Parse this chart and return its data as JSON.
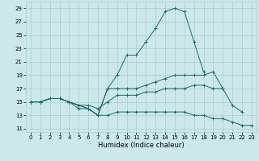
{
  "xlabel": "Humidex (Indice chaleur)",
  "bg_color": "#cce8ea",
  "grid_color": "#aacccc",
  "line_color": "#1a6b6b",
  "xlim": [
    -0.5,
    23.5
  ],
  "ylim": [
    10.5,
    30
  ],
  "xticks": [
    0,
    1,
    2,
    3,
    4,
    5,
    6,
    7,
    8,
    9,
    10,
    11,
    12,
    13,
    14,
    15,
    16,
    17,
    18,
    19,
    20,
    21,
    22,
    23
  ],
  "yticks": [
    11,
    13,
    15,
    17,
    19,
    21,
    23,
    25,
    27,
    29
  ],
  "lines": [
    {
      "x": [
        0,
        1,
        2,
        3,
        4,
        5,
        6,
        7,
        8,
        9,
        10,
        11,
        12,
        13,
        14,
        15,
        16,
        17,
        18
      ],
      "y": [
        15,
        15,
        15.5,
        15.5,
        15,
        14,
        14,
        13,
        17,
        19,
        22,
        22,
        24,
        26,
        28.5,
        29,
        28.5,
        24,
        19.5
      ]
    },
    {
      "x": [
        0,
        1,
        2,
        3,
        4,
        5,
        6,
        7,
        8,
        9,
        10,
        11,
        12,
        13,
        14,
        15,
        16,
        17,
        18,
        19,
        20,
        21,
        22
      ],
      "y": [
        15,
        15,
        15.5,
        15.5,
        15,
        14.5,
        14,
        13,
        17,
        17,
        17,
        17,
        17.5,
        18,
        18.5,
        19,
        19,
        19,
        19,
        19.5,
        17,
        14.5,
        13.5
      ]
    },
    {
      "x": [
        0,
        1,
        2,
        3,
        4,
        5,
        6,
        7,
        8,
        9,
        10,
        11,
        12,
        13,
        14,
        15,
        16,
        17,
        18,
        19,
        20
      ],
      "y": [
        15,
        15,
        15.5,
        15.5,
        15,
        14.5,
        14.5,
        14,
        15,
        16,
        16,
        16,
        16.5,
        16.5,
        17,
        17,
        17,
        17.5,
        17.5,
        17,
        17
      ]
    },
    {
      "x": [
        0,
        1,
        2,
        3,
        4,
        5,
        6,
        7,
        8,
        9,
        10,
        11,
        12,
        13,
        14,
        15,
        16,
        17,
        18,
        19,
        20,
        21,
        22,
        23
      ],
      "y": [
        15,
        15,
        15.5,
        15.5,
        15,
        14.5,
        14,
        13,
        13,
        13.5,
        13.5,
        13.5,
        13.5,
        13.5,
        13.5,
        13.5,
        13.5,
        13,
        13,
        12.5,
        12.5,
        12,
        11.5,
        11.5
      ]
    }
  ],
  "xlabel_fontsize": 6,
  "tick_fontsize": 5,
  "linewidth": 0.7,
  "markersize": 2.5
}
